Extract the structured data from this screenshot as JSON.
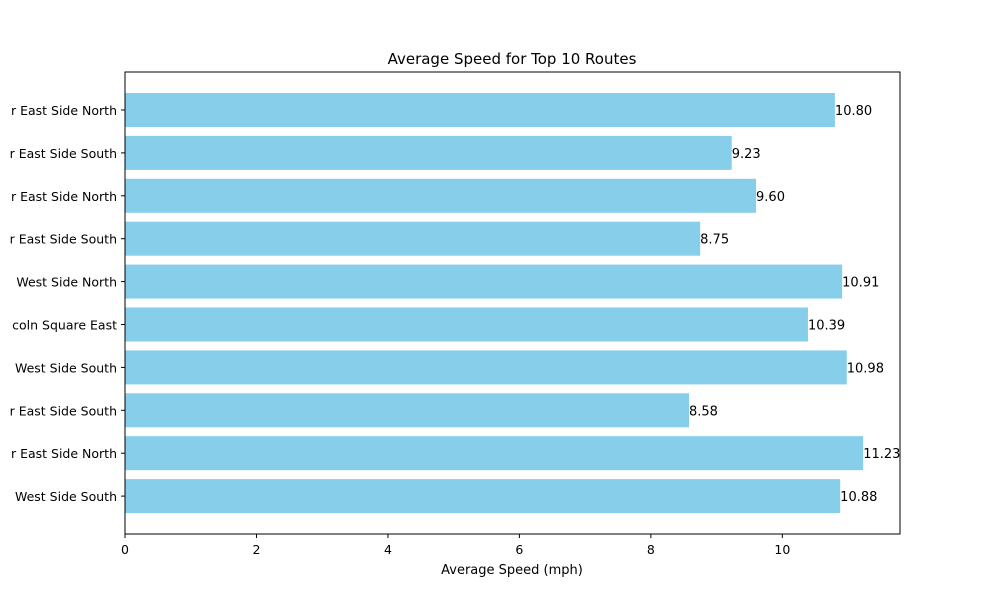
{
  "chart_data": {
    "type": "bar",
    "orientation": "horizontal",
    "title": "Average Speed for Top 10 Routes",
    "xlabel": "Average Speed (mph)",
    "ylabel": "",
    "categories": [
      "r East Side North",
      "r East Side South",
      "r East Side North",
      "r East Side South",
      "West Side North",
      "coln Square East",
      "West Side South",
      "r East Side South",
      "r East Side North",
      "West Side South"
    ],
    "values": [
      10.8,
      9.23,
      9.6,
      8.75,
      10.91,
      10.39,
      10.98,
      8.58,
      11.23,
      10.88
    ],
    "data_labels": [
      "10.80",
      "9.23",
      "9.60",
      "8.75",
      "10.91",
      "10.39",
      "10.98",
      "8.58",
      "11.23",
      "10.88"
    ],
    "xlim": [
      0,
      11.79
    ],
    "xticks": [
      0,
      2,
      4,
      6,
      8,
      10
    ],
    "xtick_labels": [
      "0",
      "2",
      "4",
      "6",
      "8",
      "10"
    ],
    "bar_color": "#87ceeb",
    "grid": false,
    "legend": "none"
  }
}
